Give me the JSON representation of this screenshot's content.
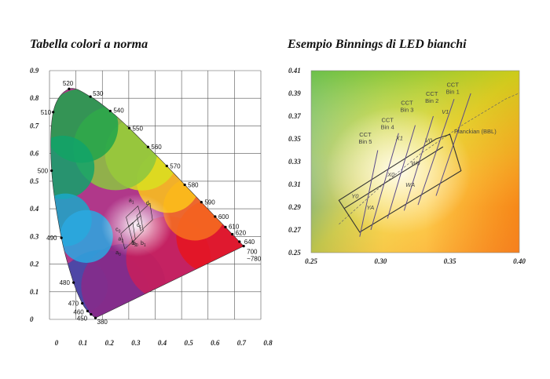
{
  "chart_data": [
    {
      "type": "scatter",
      "title": "Tabella colori a norma",
      "xlim": [
        0,
        0.8
      ],
      "ylim": [
        0,
        0.9
      ],
      "x_ticks": [
        "0",
        "0.1",
        "0.2",
        "0.3",
        "0.4",
        "0.5",
        "0.6",
        "0.7",
        "0.8"
      ],
      "y_ticks": [
        "0",
        "0.1",
        "0.2",
        "0.3",
        "0.4",
        "0.5",
        "0.6",
        "0.7",
        "0.8",
        "0.9"
      ],
      "grid": true,
      "locus_points": [
        {
          "label": "380",
          "x": 0.174,
          "y": 0.005
        },
        {
          "label": "450",
          "x": 0.157,
          "y": 0.018
        },
        {
          "label": "460",
          "x": 0.144,
          "y": 0.03
        },
        {
          "label": "470",
          "x": 0.124,
          "y": 0.058
        },
        {
          "label": "480",
          "x": 0.091,
          "y": 0.133
        },
        {
          "label": "490",
          "x": 0.045,
          "y": 0.295
        },
        {
          "label": "500",
          "x": 0.008,
          "y": 0.538
        },
        {
          "label": "510",
          "x": 0.014,
          "y": 0.75
        },
        {
          "label": "520",
          "x": 0.074,
          "y": 0.834
        },
        {
          "label": "530",
          "x": 0.155,
          "y": 0.806
        },
        {
          "label": "540",
          "x": 0.23,
          "y": 0.754
        },
        {
          "label": "550",
          "x": 0.302,
          "y": 0.692
        },
        {
          "label": "560",
          "x": 0.373,
          "y": 0.624
        },
        {
          "label": "570",
          "x": 0.444,
          "y": 0.555
        },
        {
          "label": "580",
          "x": 0.512,
          "y": 0.487
        },
        {
          "label": "590",
          "x": 0.575,
          "y": 0.424
        },
        {
          "label": "600",
          "x": 0.627,
          "y": 0.372
        },
        {
          "label": "610",
          "x": 0.666,
          "y": 0.334
        },
        {
          "label": "620",
          "x": 0.692,
          "y": 0.308
        },
        {
          "label": "640",
          "x": 0.719,
          "y": 0.281
        },
        {
          "label": "700",
          "x": 0.735,
          "y": 0.265
        }
      ],
      "locus_end_label": "~780",
      "bin_labels": [
        "a",
        "b",
        "c",
        "d",
        "a",
        "b",
        "c",
        "b",
        "a"
      ],
      "bin_subscripts": [
        "1",
        "1",
        "1",
        "1",
        "0",
        "0",
        "0",
        "2",
        "2"
      ]
    },
    {
      "type": "line",
      "title": "Esempio Binnings di LED bianchi",
      "xlim": [
        0.25,
        0.4
      ],
      "ylim": [
        0.25,
        0.41
      ],
      "x_ticks": [
        "0.25",
        "0.30",
        "0.35",
        "0.40"
      ],
      "y_ticks": [
        "0.25",
        "0.27",
        "0.29",
        "0.31",
        "0.33",
        "0.35",
        "0.37",
        "0.39",
        "0.41"
      ],
      "planckian_label": "Planckian (BBL)",
      "cct_bins": [
        {
          "line1": "CCT",
          "line2": "Bin 1"
        },
        {
          "line1": "CCT",
          "line2": "Bin 2"
        },
        {
          "line1": "CCT",
          "line2": "Bin 3"
        },
        {
          "line1": "CCT",
          "line2": "Bin 4"
        },
        {
          "line1": "CCT",
          "line2": "Bin 5"
        }
      ],
      "regions": [
        "V1",
        "V0",
        "X1",
        "W0",
        "X0",
        "WA",
        "Y0",
        "YA"
      ]
    }
  ]
}
